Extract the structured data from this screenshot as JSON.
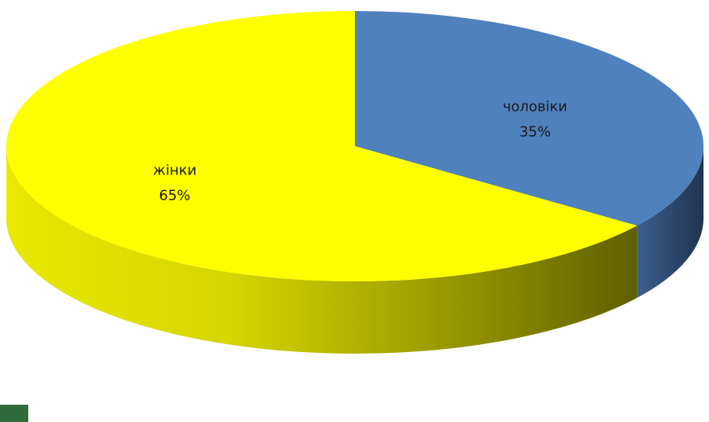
{
  "chart_data": {
    "type": "pie",
    "style": "3d",
    "title": "",
    "slices": [
      {
        "label": "чоловіки",
        "value": 35,
        "value_label": "35%",
        "color": "#4f81bd",
        "side_color": "#2c4a72"
      },
      {
        "label": "жінки",
        "value": 65,
        "value_label": "65%",
        "color": "#ffff00",
        "side_color": "#b5b500"
      }
    ]
  }
}
